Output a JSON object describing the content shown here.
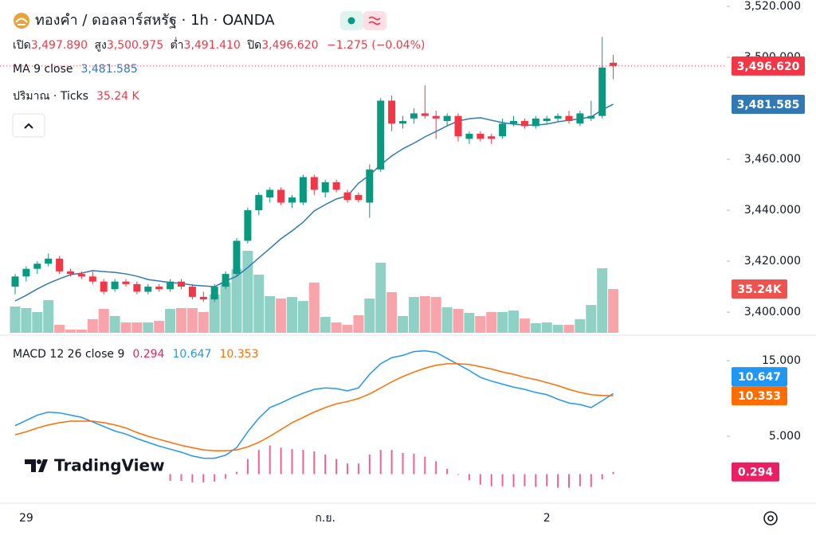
{
  "chart_data": {
    "type": "candlestick",
    "title": "ทองคำ / ดอลลาร์สหรัฐ · 1h · OANDA",
    "ohlc_names": [
      "เปิด",
      "สูง",
      "ต่ำ",
      "ปิด"
    ],
    "last_value_labels": [
      "3,497.890",
      "3,500.975",
      "3,491.410",
      "3,496.620"
    ],
    "change_label": "−1.275 (−0.04%)",
    "up_color": "#089981",
    "down_color": "#f23645",
    "categories": [
      null,
      "29",
      null,
      null,
      null,
      null,
      null,
      null,
      null,
      null,
      null,
      null,
      null,
      null,
      null,
      null,
      null,
      null,
      null,
      null,
      null,
      null,
      null,
      null,
      null,
      null,
      null,
      null,
      "ก.ย.",
      null,
      null,
      null,
      null,
      null,
      null,
      null,
      null,
      null,
      null,
      null,
      null,
      null,
      null,
      null,
      null,
      null,
      null,
      null,
      "2",
      null,
      null,
      null,
      null,
      null,
      null
    ],
    "ohlc": [
      [
        3410,
        3415,
        3407,
        3414
      ],
      [
        3414,
        3418,
        3412,
        3417
      ],
      [
        3417,
        3420,
        3415,
        3419
      ],
      [
        3419,
        3423,
        3418,
        3421
      ],
      [
        3421,
        3422,
        3415,
        3416
      ],
      [
        3416,
        3417,
        3414,
        3415
      ],
      [
        3415,
        3416,
        3413,
        3414
      ],
      [
        3414,
        3416,
        3411,
        3412
      ],
      [
        3412,
        3413,
        3407,
        3408
      ],
      [
        3409,
        3413,
        3408,
        3412
      ],
      [
        3412,
        3413,
        3410,
        3411
      ],
      [
        3411,
        3412,
        3407,
        3408
      ],
      [
        3408,
        3411,
        3407,
        3410
      ],
      [
        3410,
        3411,
        3408,
        3409
      ],
      [
        3409,
        3413,
        3408,
        3412
      ],
      [
        3412,
        3413,
        3409,
        3410
      ],
      [
        3410,
        3411,
        3405,
        3406
      ],
      [
        3406,
        3408,
        3404,
        3405
      ],
      [
        3405,
        3411,
        3404,
        3410
      ],
      [
        3410,
        3416,
        3409,
        3415
      ],
      [
        3415,
        3429,
        3414,
        3428
      ],
      [
        3428,
        3441,
        3427,
        3440
      ],
      [
        3440,
        3447,
        3438,
        3446
      ],
      [
        3445,
        3449,
        3443,
        3448
      ],
      [
        3448,
        3449,
        3442,
        3443
      ],
      [
        3443,
        3446,
        3441,
        3445
      ],
      [
        3443,
        3454,
        3442,
        3453
      ],
      [
        3453,
        3454,
        3446,
        3448
      ],
      [
        3447,
        3452,
        3445,
        3451
      ],
      [
        3451,
        3452,
        3447,
        3448
      ],
      [
        3447,
        3448,
        3443,
        3444
      ],
      [
        3446,
        3447,
        3443,
        3444
      ],
      [
        3443,
        3458,
        3437,
        3456
      ],
      [
        3456,
        3484,
        3455,
        3483
      ],
      [
        3483,
        3485,
        3471,
        3474
      ],
      [
        3474,
        3477,
        3472,
        3475
      ],
      [
        3476,
        3480,
        3474,
        3478
      ],
      [
        3478,
        3489,
        3476,
        3477
      ],
      [
        3477,
        3479,
        3468,
        3476
      ],
      [
        3475,
        3478,
        3473,
        3477
      ],
      [
        3477,
        3478,
        3467,
        3469
      ],
      [
        3468,
        3471,
        3466,
        3470
      ],
      [
        3470,
        3471,
        3467,
        3468
      ],
      [
        3469,
        3470,
        3466,
        3468
      ],
      [
        3469,
        3476,
        3468,
        3474
      ],
      [
        3474,
        3477,
        3473,
        3475
      ],
      [
        3475,
        3476,
        3472,
        3473
      ],
      [
        3473,
        3477,
        3472,
        3476
      ],
      [
        3475,
        3477,
        3474,
        3476
      ],
      [
        3476,
        3478,
        3475,
        3477
      ],
      [
        3477,
        3479,
        3474,
        3475
      ],
      [
        3474,
        3479,
        3473,
        3478
      ],
      [
        3476,
        3483,
        3475,
        3477
      ],
      [
        3477,
        3508,
        3476,
        3496
      ],
      [
        3497.89,
        3500.975,
        3491.41,
        3496.62
      ]
    ],
    "ylim": [
      3391.9,
      3522.5
    ],
    "yticks": [
      {
        "value": 3520,
        "label": "3,520.000"
      },
      {
        "value": 3500,
        "label": "3,500.000"
      },
      {
        "value": 3460,
        "label": "3,460.000"
      },
      {
        "value": 3440,
        "label": "3,440.000"
      },
      {
        "value": 3420,
        "label": "3,420.000"
      },
      {
        "value": 3400,
        "label": "3,400.000"
      }
    ],
    "price_label": "3,496.620",
    "ma": {
      "name": "MA 9 close",
      "value_label": "3,481.585",
      "color": "#3179b5",
      "values": [
        3404.4,
        3406.6,
        3409.1,
        3411.3,
        3413.1,
        3414.7,
        3415.3,
        3416.3,
        3415.9,
        3415.6,
        3415.0,
        3414.1,
        3412.8,
        3412.2,
        3411.6,
        3411.3,
        3410.6,
        3410.3,
        3410.0,
        3412.2,
        3414.1,
        3417.5,
        3421.3,
        3425.0,
        3428.8,
        3431.9,
        3435.3,
        3439.7,
        3442.2,
        3444.4,
        3445.6,
        3450.6,
        3453.8,
        3457.8,
        3461.3,
        3464.1,
        3466.3,
        3468.8,
        3470.9,
        3473.1,
        3475.0,
        3475.9,
        3476.3,
        3475.3,
        3474.4,
        3473.8,
        3473.4,
        3473.4,
        3473.8,
        3474.7,
        3475.3,
        3475.9,
        3476.6,
        3479.4,
        3481.585
      ],
      "axis_label": "3,481.585"
    },
    "volume": {
      "name": "ปริมาณ · Ticks",
      "value_label": "35.24 K",
      "axis_label": "35.24K",
      "values": [
        21.2,
        19.9,
        16.7,
        26.3,
        6.4,
        2.6,
        2.6,
        10.9,
        19.2,
        13.5,
        8.3,
        8.3,
        8.3,
        9.6,
        19.2,
        19.9,
        19.9,
        16.7,
        30.8,
        40.4,
        51.3,
        66.0,
        46.8,
        29.5,
        27.6,
        28.8,
        25.6,
        40.4,
        12.8,
        8.3,
        6.4,
        14.1,
        27.6,
        56.4,
        32.7,
        13.5,
        28.8,
        29.5,
        28.8,
        20.5,
        19.2,
        16.0,
        13.5,
        16.7,
        16.7,
        17.9,
        11.5,
        7.7,
        8.3,
        6.4,
        6.4,
        11.0,
        22.4,
        51.9,
        35.24
      ]
    },
    "macd": {
      "name": "MACD 12 26 close 9",
      "ylim": [
        -3.63,
        17.95
      ],
      "yticks": [
        {
          "value": 15,
          "label": "15.000"
        },
        {
          "value": 5,
          "label": "5.000"
        }
      ],
      "series": [
        {
          "name": "histogram",
          "color": "#e91e63",
          "value_label": "0.294",
          "values": [
            1.2,
            1.5,
            1.7,
            1.7,
            1.3,
            0.8,
            0.5,
            -0.1,
            -0.5,
            -0.8,
            -0.8,
            -0.8,
            -0.8,
            -0.9,
            -0.9,
            -0.9,
            -1.1,
            -1.1,
            -1.0,
            -0.6,
            0.3,
            2.0,
            3.2,
            3.8,
            3.5,
            3.3,
            3.2,
            3.0,
            2.6,
            2.0,
            1.4,
            1.4,
            2.6,
            3.2,
            3.2,
            2.8,
            2.7,
            2.3,
            1.7,
            0.7,
            -0.1,
            -0.8,
            -1.4,
            -1.6,
            -1.6,
            -1.7,
            -1.6,
            -1.7,
            -1.6,
            -1.8,
            -1.8,
            -1.6,
            -1.7,
            -0.7,
            0.294
          ]
        },
        {
          "name": "macd",
          "color": "#2196f3",
          "value_label": "10.647",
          "values": [
            6.4,
            7.1,
            7.8,
            8.2,
            8.1,
            7.8,
            7.5,
            6.9,
            6.3,
            5.7,
            5.3,
            4.7,
            4.2,
            3.7,
            3.3,
            2.9,
            2.4,
            2.1,
            2.1,
            2.5,
            3.5,
            5.6,
            7.4,
            8.8,
            9.4,
            10.1,
            10.7,
            11.2,
            11.4,
            11.3,
            11.0,
            11.4,
            13.2,
            14.6,
            15.4,
            15.7,
            16.2,
            16.3,
            16.1,
            15.3,
            14.5,
            13.7,
            12.8,
            12.3,
            11.9,
            11.5,
            11.2,
            10.8,
            10.5,
            9.9,
            9.4,
            9.2,
            8.8,
            9.7,
            10.647
          ]
        },
        {
          "name": "signal",
          "color": "#ff6d00",
          "value_label": "10.353",
          "values": [
            5.2,
            5.6,
            6.1,
            6.5,
            6.8,
            7.0,
            7.0,
            7.0,
            6.8,
            6.5,
            6.1,
            5.5,
            5.0,
            4.6,
            4.2,
            3.8,
            3.5,
            3.2,
            3.1,
            3.1,
            3.2,
            3.6,
            4.2,
            5.0,
            5.9,
            6.8,
            7.5,
            8.2,
            8.8,
            9.3,
            9.6,
            10.0,
            10.6,
            11.4,
            12.2,
            12.9,
            13.5,
            14.0,
            14.4,
            14.6,
            14.6,
            14.5,
            14.2,
            13.9,
            13.5,
            13.2,
            12.8,
            12.5,
            12.1,
            11.7,
            11.2,
            10.8,
            10.5,
            10.4,
            10.353
          ]
        }
      ]
    },
    "watermark": "TradingView"
  }
}
